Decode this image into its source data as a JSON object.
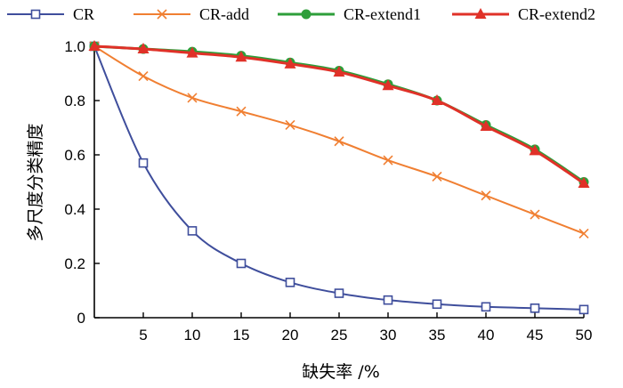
{
  "chart_data": {
    "type": "line",
    "title": "",
    "xlabel": "缺失率 /%",
    "ylabel": "多尺度分类精度",
    "x": [
      0,
      5,
      10,
      15,
      20,
      25,
      30,
      35,
      40,
      45,
      50
    ],
    "x_tick_labels": [
      "5",
      "10",
      "15",
      "20",
      "25",
      "30",
      "35",
      "40",
      "45",
      "50"
    ],
    "y_tick_labels": [
      "0",
      "0.2",
      "0.4",
      "0.6",
      "0.8",
      "1.0"
    ],
    "xlim": [
      0,
      50
    ],
    "ylim": [
      0,
      1.0
    ],
    "grid": false,
    "legend_position": "top",
    "series": [
      {
        "name": "CR",
        "color": "#3f4e9c",
        "marker": "open-square",
        "values": [
          1.0,
          0.57,
          0.32,
          0.2,
          0.13,
          0.09,
          0.065,
          0.05,
          0.04,
          0.035,
          0.03
        ]
      },
      {
        "name": "CR-add",
        "color": "#f07f32",
        "marker": "x",
        "values": [
          1.0,
          0.89,
          0.81,
          0.76,
          0.71,
          0.65,
          0.58,
          0.52,
          0.45,
          0.38,
          0.31
        ]
      },
      {
        "name": "CR-extend1",
        "color": "#2e9e3a",
        "marker": "filled-circle",
        "values": [
          1.0,
          0.99,
          0.98,
          0.965,
          0.94,
          0.91,
          0.86,
          0.8,
          0.71,
          0.62,
          0.5
        ]
      },
      {
        "name": "CR-extend2",
        "color": "#e03128",
        "marker": "filled-triangle",
        "values": [
          1.0,
          0.99,
          0.975,
          0.96,
          0.935,
          0.905,
          0.855,
          0.8,
          0.705,
          0.615,
          0.495
        ]
      }
    ]
  }
}
